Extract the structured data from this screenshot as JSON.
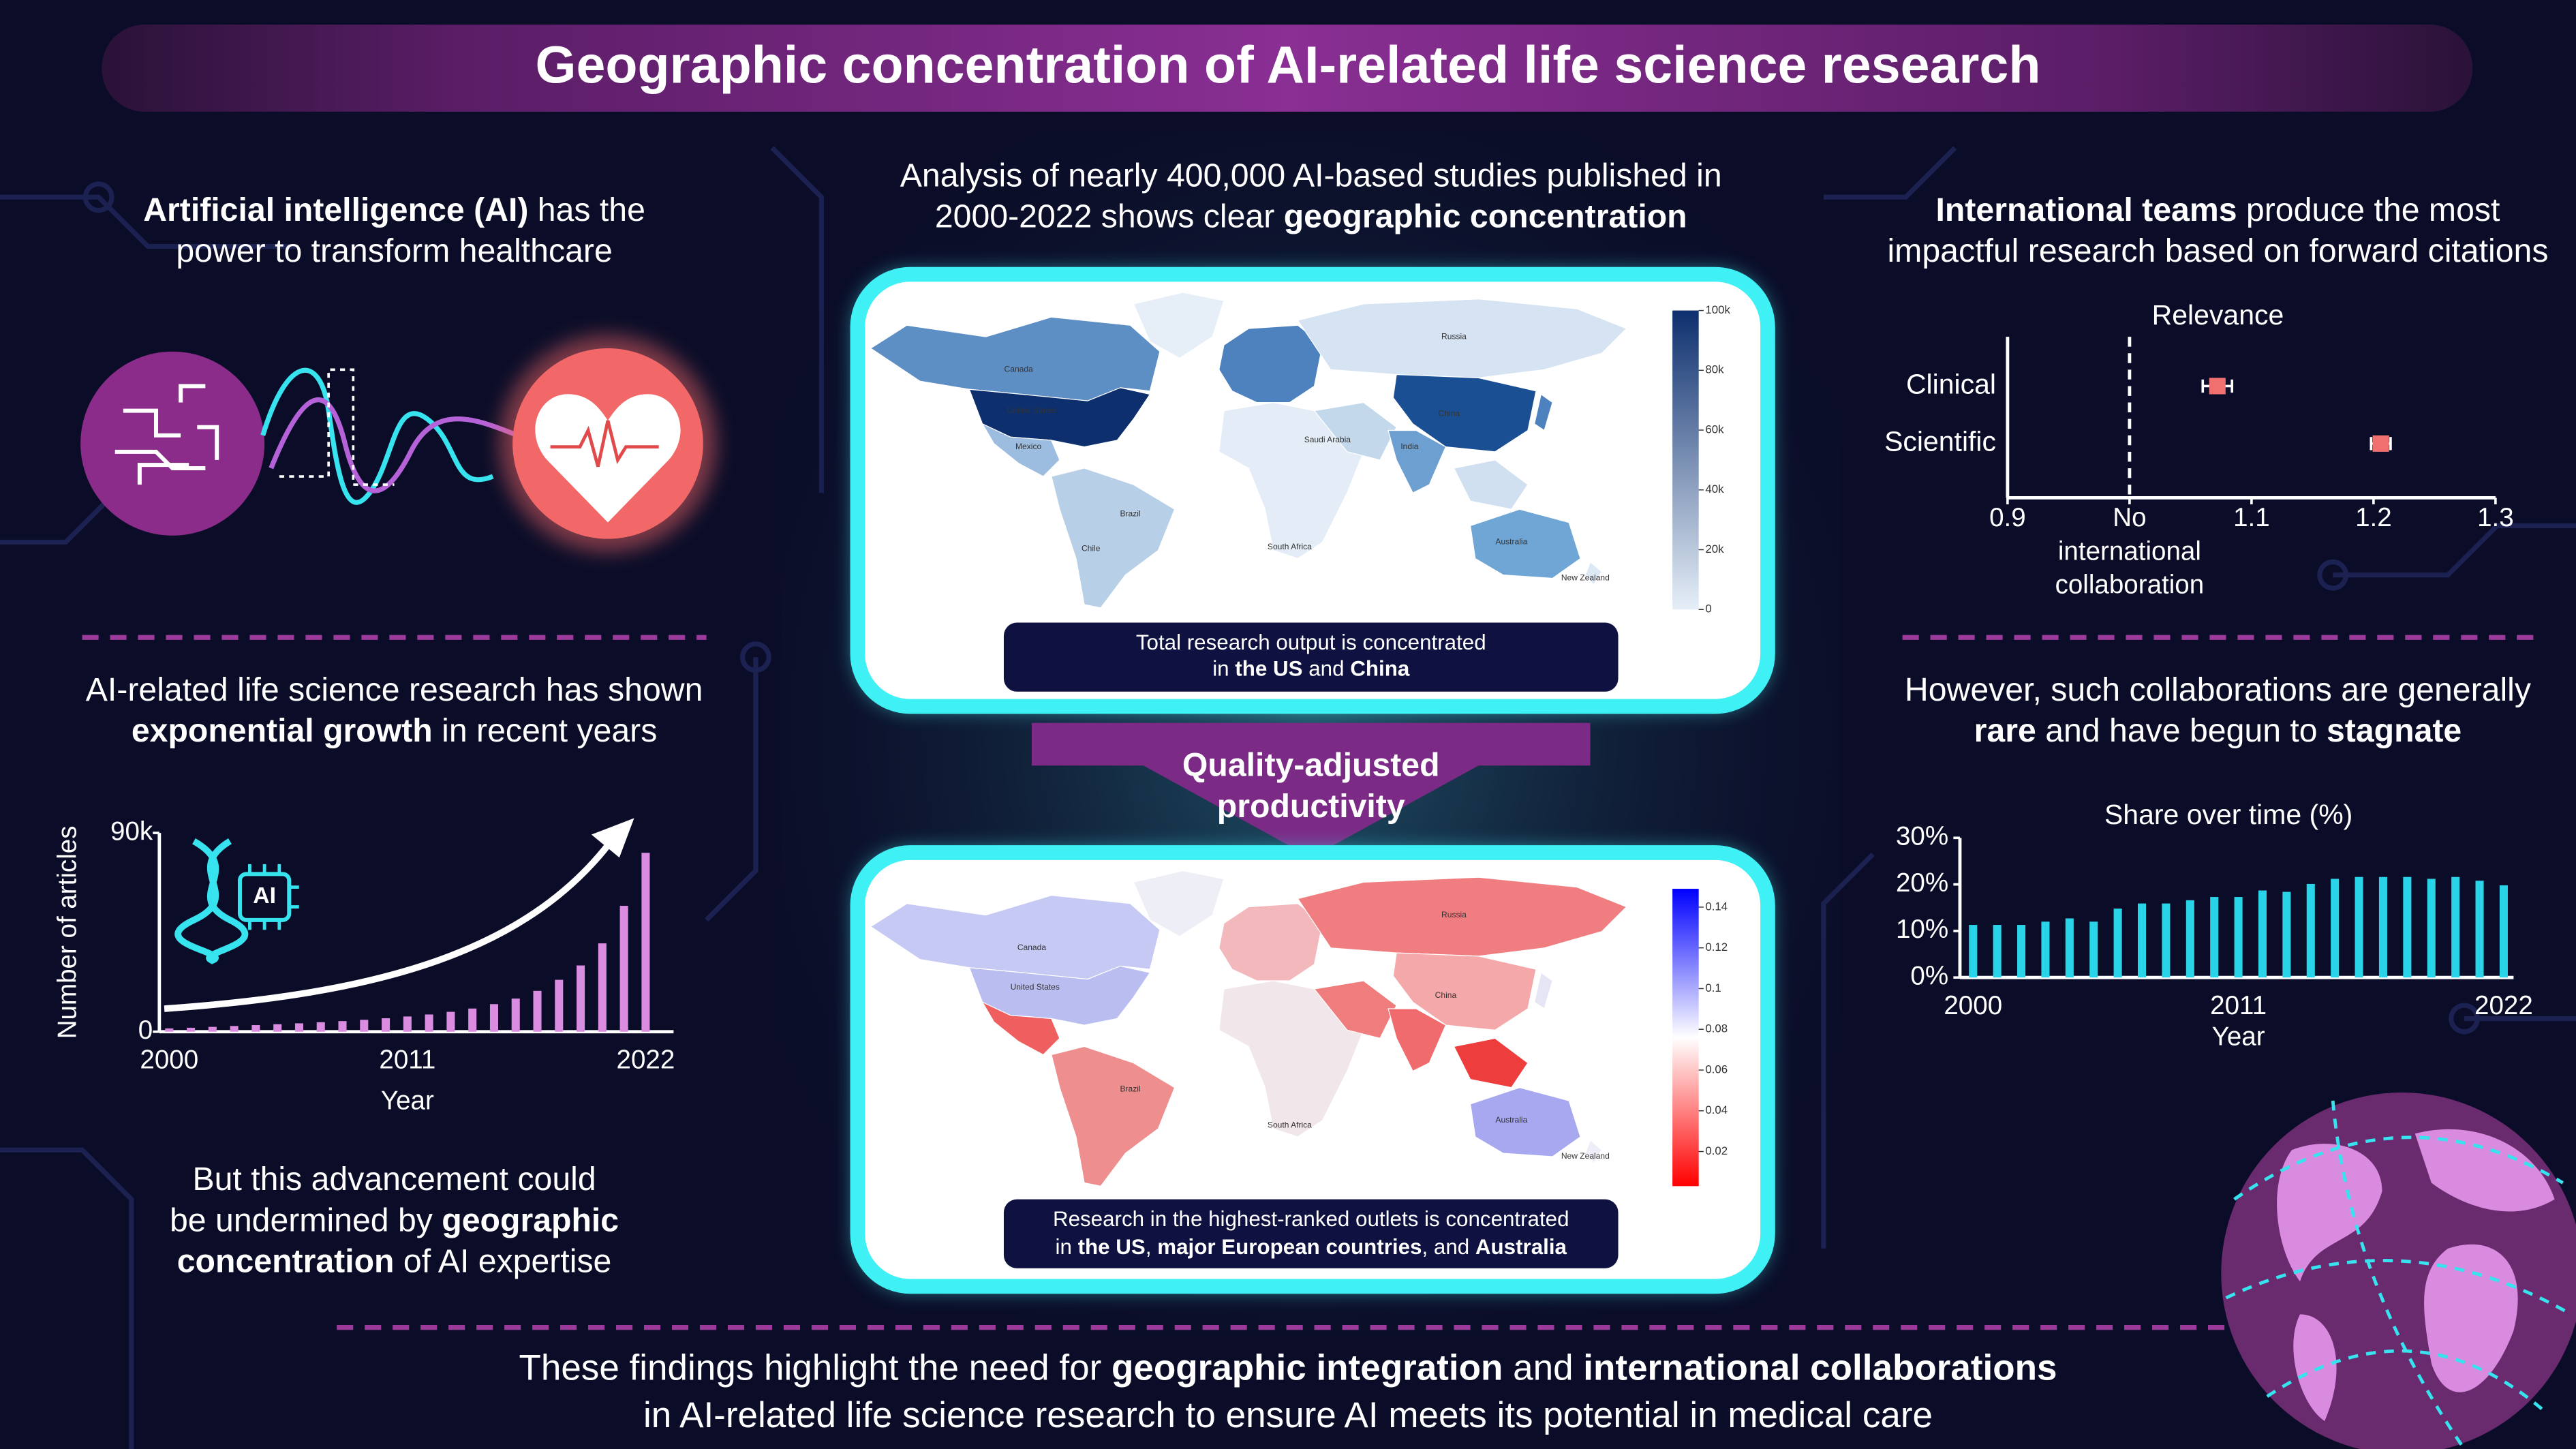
{
  "header": {
    "title": "Geographic concentration of AI-related life science research"
  },
  "intro": {
    "lines": [
      [
        {
          "text": "Artificial intelligence (AI)",
          "bold": true
        },
        {
          "text": " has the"
        }
      ],
      [
        {
          "text": "power to transform healthcare"
        }
      ]
    ]
  },
  "growth_text": {
    "lines": [
      [
        {
          "text": "AI-related life science research has shown"
        }
      ],
      [
        {
          "text": "exponential growth",
          "bold": true
        },
        {
          "text": " in recent years"
        }
      ]
    ]
  },
  "dna_icon_label": "AI",
  "caveat": {
    "lines": [
      [
        {
          "text": "But this advancement could"
        }
      ],
      [
        {
          "text": "be undermined by "
        },
        {
          "text": "geographic",
          "bold": true
        }
      ],
      [
        {
          "text": "concentration",
          "bold": true
        },
        {
          "text": " of AI expertise"
        }
      ]
    ]
  },
  "analysis": {
    "lines": [
      [
        {
          "text": "Analysis of nearly 400,000 AI-based studies published in"
        }
      ],
      [
        {
          "text": "2000-2022 shows clear "
        },
        {
          "text": "geographic concentration",
          "bold": true
        }
      ]
    ]
  },
  "maps": [
    {
      "caption": {
        "lines": [
          [
            {
              "text": "Total research output is concentrated"
            }
          ],
          [
            {
              "text": "in "
            },
            {
              "text": "the US",
              "bold": true
            },
            {
              "text": " and "
            },
            {
              "text": "China",
              "bold": true
            }
          ]
        ]
      },
      "colorbar": {
        "ylim": [
          0,
          100000
        ],
        "yticks": [
          {
            "value": 100000,
            "label": "100k"
          },
          {
            "value": 80000,
            "label": "80k"
          },
          {
            "value": 60000,
            "label": "60k"
          },
          {
            "value": 40000,
            "label": "40k"
          },
          {
            "value": 20000,
            "label": "20k"
          },
          0
        ],
        "colors": [
          "#e6eff8",
          "#0d2f6e"
        ]
      },
      "labels": [
        "Canada",
        "United States",
        "Mexico",
        "Brazil",
        "Chile",
        "Russia",
        "China",
        "India",
        "Australia",
        "New Zealand",
        "South Africa",
        "Saudi Arabia"
      ]
    },
    {
      "caption": {
        "lines": [
          [
            {
              "text": "Research in the highest-ranked outlets is concentrated"
            }
          ],
          [
            {
              "text": "in "
            },
            {
              "text": "the US",
              "bold": true
            },
            {
              "text": ", "
            },
            {
              "text": "major European countries",
              "bold": true
            },
            {
              "text": ", and "
            },
            {
              "text": "Australia",
              "bold": true
            }
          ]
        ]
      },
      "colorbar": {
        "ylim": [
          0.003,
          0.149
        ],
        "yticks": [
          0.14,
          0.12,
          0.1,
          0.08,
          0.06,
          0.04,
          0.02
        ],
        "colors": [
          "#ff0000",
          "#ffffff",
          "#0000ff"
        ]
      },
      "labels": [
        "Canada",
        "United States",
        "Brazil",
        "Russia",
        "China",
        "Australia",
        "New Zealand",
        "South Africa"
      ]
    }
  ],
  "arrow_label": {
    "lines": [
      [
        {
          "text": "Quality-adjusted",
          "bold": true
        }
      ],
      [
        {
          "text": "productivity",
          "bold": true
        }
      ]
    ]
  },
  "collab_text": {
    "lines": [
      [
        {
          "text": "International teams",
          "bold": true
        },
        {
          "text": " produce the most"
        }
      ],
      [
        {
          "text": "impactful research based on forward citations"
        }
      ]
    ]
  },
  "stagnate_text": {
    "lines": [
      [
        {
          "text": "However, such collaborations are generally"
        }
      ],
      [
        {
          "text": "rare",
          "bold": true
        },
        {
          "text": " and have begun to "
        },
        {
          "text": "stagnate",
          "bold": true
        }
      ]
    ]
  },
  "conclusion": {
    "lines": [
      [
        {
          "text": "These findings highlight the need for "
        },
        {
          "text": "geographic integration",
          "bold": true
        },
        {
          "text": " and "
        },
        {
          "text": "international collaborations",
          "bold": true
        }
      ],
      [
        {
          "text": "in AI-related life science research to ensure AI meets its potential in medical care"
        }
      ]
    ]
  },
  "chart_data": [
    {
      "type": "bar",
      "categories": [
        "2000",
        null,
        null,
        null,
        null,
        null,
        null,
        null,
        null,
        null,
        null,
        "2011",
        null,
        null,
        null,
        null,
        null,
        null,
        null,
        null,
        null,
        null,
        "2022"
      ],
      "values": [
        1500,
        1800,
        2200,
        2600,
        3000,
        3400,
        3800,
        4300,
        4800,
        5400,
        6100,
        6900,
        7800,
        9000,
        10500,
        12500,
        15000,
        18500,
        23500,
        30000,
        40000,
        57000,
        81000
      ],
      "color": "#d98ce0",
      "ylim": [
        0,
        90000
      ],
      "yticks": [
        0,
        {
          "value": 90000,
          "label": "90k"
        }
      ],
      "xlabel": "Year",
      "ylabel": "Number of articles"
    },
    {
      "type": "forest",
      "title": "Relevance",
      "categories": [
        "Clinical",
        "Scientific"
      ],
      "values": [
        1.072,
        1.206
      ],
      "errors": [
        0.012,
        0.008
      ],
      "color": "#f07070",
      "xlim": [
        0.9,
        1.3
      ],
      "xticks": [
        0.9,
        {
          "value": 1,
          "label": [
            "No",
            "international",
            "collaboration"
          ]
        },
        1.1,
        1.2,
        1.3
      ],
      "reference": 1
    },
    {
      "type": "bar",
      "title": "Share over time (%)",
      "categories": [
        "2000",
        null,
        null,
        null,
        null,
        null,
        null,
        null,
        null,
        null,
        null,
        "2011",
        null,
        null,
        null,
        null,
        null,
        null,
        null,
        null,
        null,
        null,
        "2022"
      ],
      "values": [
        11.3,
        11.3,
        11.3,
        12,
        12.7,
        12,
        14.8,
        15.9,
        15.9,
        16.6,
        17.3,
        17.3,
        18.7,
        18.4,
        20.1,
        21.2,
        21.6,
        21.6,
        21.6,
        21.2,
        21.6,
        20.8,
        19.8
      ],
      "color": "#29d3e8",
      "ylim": [
        0,
        30
      ],
      "yticks": [
        {
          "value": 0,
          "label": "0%"
        },
        {
          "value": 10,
          "label": "10%"
        },
        {
          "value": 20,
          "label": "20%"
        },
        {
          "value": 30,
          "label": "30%"
        }
      ],
      "xlabel": "Year"
    }
  ]
}
